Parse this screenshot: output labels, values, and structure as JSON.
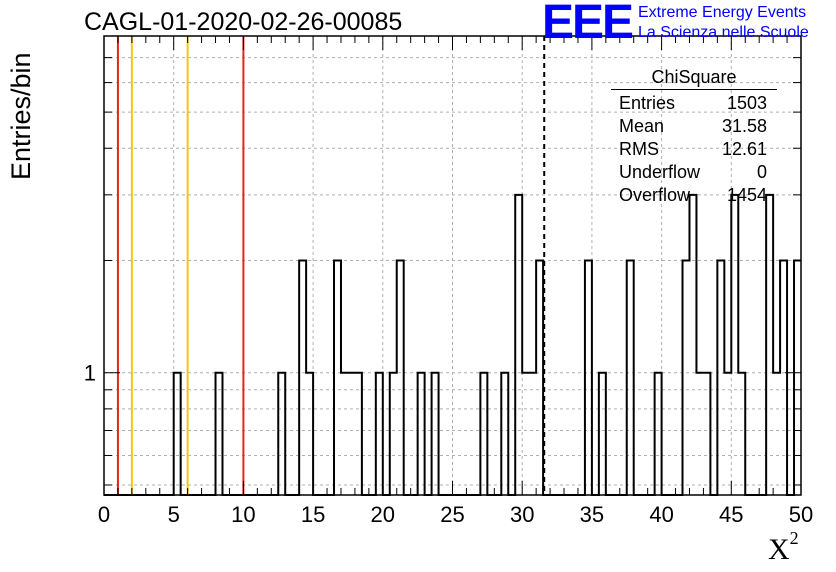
{
  "title": "CAGL-01-2020-02-26-00085",
  "logo": {
    "mark": "EEE",
    "line1": "Extreme Energy Events",
    "line2": "La Scienza nelle Scuole",
    "color": "#0000ff"
  },
  "stats_box": {
    "name": "ChiSquare",
    "rows": [
      {
        "label": "Entries",
        "value": "1503"
      },
      {
        "label": "Mean",
        "value": "31.58"
      },
      {
        "label": "RMS",
        "value": "12.61"
      },
      {
        "label": "Underflow",
        "value": "0"
      },
      {
        "label": "Overflow",
        "value": "1454"
      }
    ]
  },
  "chart_data": {
    "type": "bar",
    "histogram": true,
    "xlabel": "X",
    "xlabel_sup": "2",
    "ylabel": "Entries/bin",
    "xlim": [
      0,
      50
    ],
    "ylim": [
      0.47,
      8
    ],
    "yscale": "log",
    "grid": true,
    "x_ticks": [
      0,
      5,
      10,
      15,
      20,
      25,
      30,
      35,
      40,
      45,
      50
    ],
    "y_tick_labels": [
      {
        "value": 1,
        "label": "1"
      }
    ],
    "bin_width": 0.5,
    "bins": [
      {
        "x0": 5.0,
        "count": 1
      },
      {
        "x0": 8.0,
        "count": 1
      },
      {
        "x0": 12.5,
        "count": 1
      },
      {
        "x0": 14.0,
        "count": 2
      },
      {
        "x0": 14.5,
        "count": 1
      },
      {
        "x0": 16.5,
        "count": 2
      },
      {
        "x0": 17.0,
        "count": 1
      },
      {
        "x0": 17.5,
        "count": 1
      },
      {
        "x0": 18.0,
        "count": 1
      },
      {
        "x0": 19.5,
        "count": 1
      },
      {
        "x0": 21.0,
        "count": 2
      },
      {
        "x0": 20.5,
        "count": 1
      },
      {
        "x0": 22.5,
        "count": 1
      },
      {
        "x0": 23.5,
        "count": 1
      },
      {
        "x0": 27.0,
        "count": 1
      },
      {
        "x0": 28.5,
        "count": 1
      },
      {
        "x0": 29.5,
        "count": 3
      },
      {
        "x0": 30.0,
        "count": 1
      },
      {
        "x0": 30.5,
        "count": 1
      },
      {
        "x0": 31.0,
        "count": 2
      },
      {
        "x0": 34.5,
        "count": 2
      },
      {
        "x0": 35.5,
        "count": 1
      },
      {
        "x0": 37.5,
        "count": 2
      },
      {
        "x0": 39.5,
        "count": 1
      },
      {
        "x0": 41.5,
        "count": 2
      },
      {
        "x0": 42.0,
        "count": 3
      },
      {
        "x0": 42.5,
        "count": 1
      },
      {
        "x0": 43.0,
        "count": 1
      },
      {
        "x0": 44.0,
        "count": 2
      },
      {
        "x0": 44.5,
        "count": 1
      },
      {
        "x0": 45.0,
        "count": 3
      },
      {
        "x0": 45.5,
        "count": 1
      },
      {
        "x0": 47.5,
        "count": 3
      },
      {
        "x0": 48.0,
        "count": 1
      },
      {
        "x0": 48.5,
        "count": 2
      },
      {
        "x0": 49.5,
        "count": 2
      }
    ],
    "vertical_lines": [
      {
        "x": 1.0,
        "color": "#e8231c",
        "style": "solid"
      },
      {
        "x": 2.0,
        "color": "#f5c518",
        "style": "solid"
      },
      {
        "x": 6.0,
        "color": "#f5c518",
        "style": "solid"
      },
      {
        "x": 10.0,
        "color": "#e8231c",
        "style": "solid"
      },
      {
        "x": 31.58,
        "color": "#000000",
        "style": "dashed"
      }
    ]
  }
}
